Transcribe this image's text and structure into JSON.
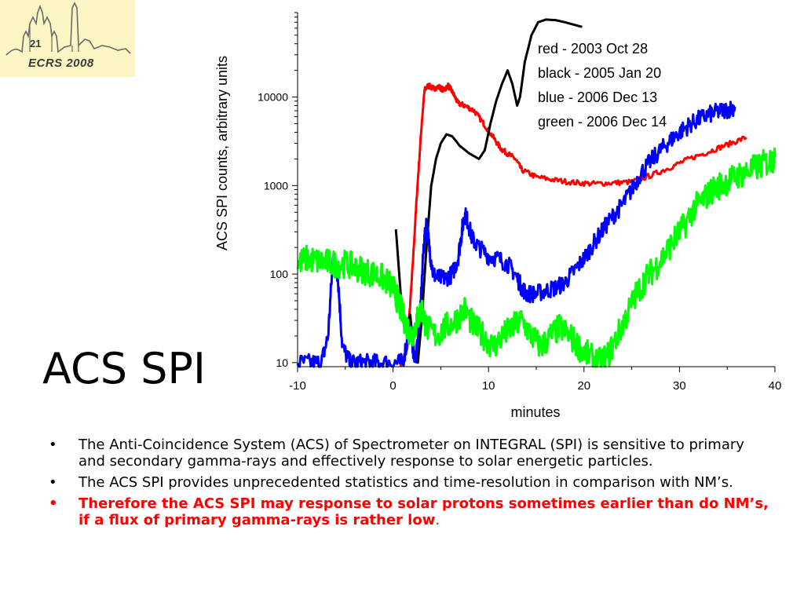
{
  "logo": {
    "number": "21",
    "text": "ECRS 2008"
  },
  "slide": {
    "title": "ACS SPI"
  },
  "bullets": [
    {
      "text": "The Anti-Coincidence System (ACS) of Spectrometer on INTEGRAL (SPI) is sensitive to primary and secondary gamma-rays and effectively response to solar energetic particles.",
      "color": "#000000"
    },
    {
      "text": "The ACS SPI provides unprecedented statistics and time-resolution in comparison with NM’s.",
      "color": "#000000"
    },
    {
      "text": "Therefore the ACS SPI may response to solar protons sometimes earlier than do NM’s, if a flux of primary gamma-rays is rather low",
      "suffix": ".",
      "color": "#ff0000"
    }
  ],
  "chart_data": {
    "type": "line",
    "title": "",
    "xlabel": "minutes",
    "ylabel": "ACS SPI counts, arbitrary units",
    "xlim": [
      -10,
      40
    ],
    "ylim": [
      9,
      90000
    ],
    "yscale": "log",
    "xticks": [
      -10,
      0,
      10,
      20,
      30,
      40
    ],
    "yticks": [
      10,
      100,
      1000,
      10000
    ],
    "legend_position": "top-right",
    "series": [
      {
        "name": "red - 2003 Oct 28",
        "color": "#ff0000",
        "x": [
          0.8,
          1.5,
          2.0,
          2.5,
          3.0,
          3.3,
          3.7,
          4.2,
          4.8,
          5.3,
          5.8,
          6.3,
          6.8,
          7.5,
          8.5,
          9.5,
          10.5,
          11.3,
          12.0,
          12.8,
          13.5,
          15,
          17,
          19,
          21,
          23,
          25,
          27,
          29,
          31,
          33,
          35,
          37
        ],
        "y": [
          9,
          15,
          100,
          800,
          5000,
          12000,
          13500,
          12500,
          13000,
          12000,
          13500,
          11000,
          8500,
          8000,
          7000,
          5000,
          3500,
          2600,
          2300,
          2000,
          1500,
          1250,
          1150,
          1080,
          1050,
          1070,
          1100,
          1300,
          1600,
          2000,
          2400,
          2900,
          3500
        ]
      },
      {
        "name": "black - 2005 Jan 20",
        "color": "#000000",
        "x": [
          0.3,
          0.8,
          1.3,
          1.8,
          2.2,
          2.6,
          3.0,
          3.5,
          4.0,
          4.5,
          5.0,
          5.6,
          6.2,
          7.0,
          8.0,
          9.0,
          9.6,
          10.2,
          10.8,
          11.4,
          12.0,
          12.5,
          13.0,
          13.3,
          13.8,
          14.5,
          15.2,
          16.0,
          17.0,
          18.0,
          19.8
        ],
        "y": [
          320,
          60,
          25,
          35,
          12,
          10,
          30,
          200,
          1000,
          2000,
          3000,
          3800,
          3600,
          2800,
          2300,
          2000,
          2500,
          5000,
          9000,
          14000,
          20000,
          14000,
          8000,
          10000,
          25000,
          50000,
          70000,
          75000,
          74000,
          70000,
          62000
        ]
      },
      {
        "name": "blue - 2006 Dec 13",
        "color": "#0000ff",
        "x": [
          -10,
          -8.5,
          -7.5,
          -6.8,
          -6.3,
          -5.8,
          -5.3,
          -4.5,
          -3.5,
          -2.5,
          -1.5,
          0,
          1.0,
          1.8,
          2.3,
          2.8,
          3.2,
          3.5,
          3.8,
          4.2,
          4.8,
          5.5,
          6.2,
          6.8,
          7.2,
          7.5,
          7.8,
          8.3,
          9.0,
          10,
          11,
          12,
          12.8,
          13.5,
          14,
          15,
          16,
          17,
          18,
          19,
          20,
          21,
          22,
          23,
          24,
          25,
          26,
          27,
          28,
          29,
          30,
          31,
          32,
          33,
          34,
          35,
          35.8
        ],
        "y": [
          10,
          10,
          10,
          20,
          150,
          100,
          15,
          10,
          10,
          10,
          10,
          10,
          10,
          25,
          10,
          30,
          200,
          380,
          200,
          100,
          90,
          90,
          100,
          150,
          300,
          480,
          400,
          250,
          200,
          160,
          150,
          130,
          100,
          70,
          60,
          60,
          65,
          70,
          80,
          110,
          150,
          220,
          320,
          450,
          600,
          900,
          1400,
          1900,
          2500,
          3200,
          4000,
          4800,
          5600,
          6300,
          6800,
          7200,
          7800
        ]
      },
      {
        "name": "green - 2006 Dec 14",
        "color": "#00ff00",
        "x": [
          -10,
          -9,
          -8,
          -7,
          -6,
          -5,
          -4,
          -3,
          -2,
          -1,
          0,
          0.5,
          1.0,
          1.5,
          2.0,
          2.5,
          3.0,
          3.5,
          4.5,
          5.5,
          6.5,
          7.5,
          8.5,
          9.5,
          10.5,
          11.5,
          12.5,
          13.5,
          14.5,
          15.5,
          16.5,
          17.5,
          18.5,
          19.5,
          20.5,
          21.5,
          22.5,
          23.5,
          24.5,
          25.5,
          26.5,
          27.5,
          28.5,
          29.5,
          30.5,
          31.5,
          32.5,
          33.5,
          34.5,
          35.5,
          36.5,
          37.5,
          38.5,
          39.5,
          40
        ],
        "y": [
          130,
          150,
          140,
          135,
          130,
          130,
          120,
          110,
          100,
          90,
          70,
          50,
          35,
          25,
          20,
          30,
          40,
          25,
          20,
          25,
          30,
          40,
          25,
          20,
          15,
          20,
          25,
          30,
          20,
          15,
          20,
          25,
          20,
          15,
          12,
          10,
          12,
          20,
          35,
          60,
          90,
          120,
          170,
          250,
          350,
          550,
          700,
          900,
          1050,
          1200,
          1350,
          1500,
          1700,
          1900,
          2100
        ]
      }
    ]
  }
}
